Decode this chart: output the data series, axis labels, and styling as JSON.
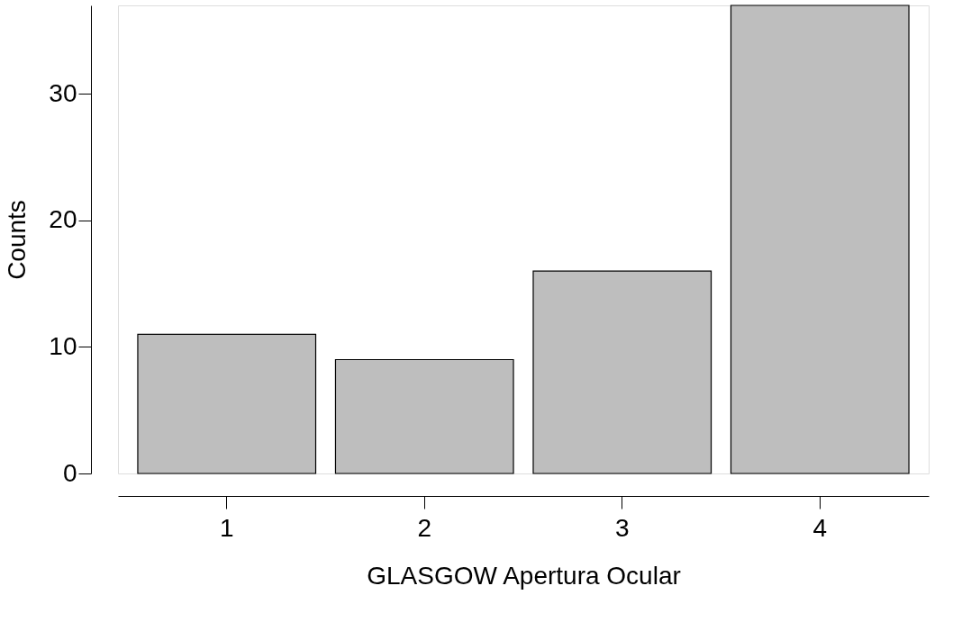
{
  "chart_data": {
    "type": "bar",
    "xlabel": "GLASGOW Apertura Ocular",
    "ylabel": "Counts",
    "categories": [
      "1",
      "2",
      "3",
      "4"
    ],
    "values": [
      11,
      9,
      16,
      37
    ],
    "color": "#bebebe",
    "ylim": [
      0,
      37
    ],
    "yticks": [
      0,
      10,
      20,
      30
    ],
    "grid": false
  }
}
